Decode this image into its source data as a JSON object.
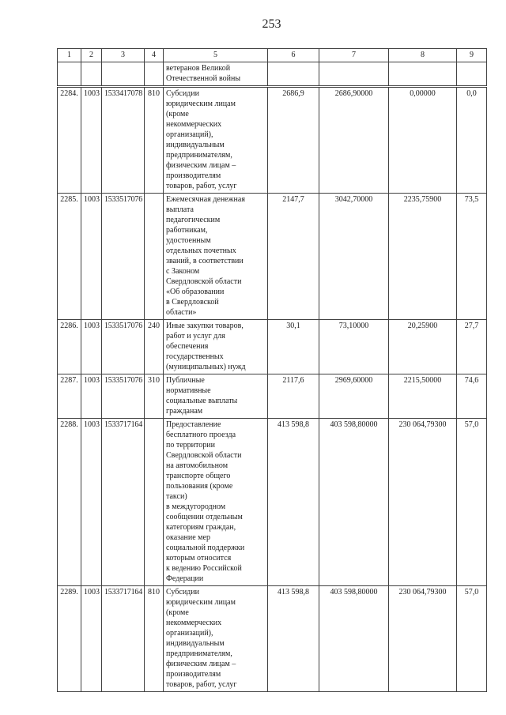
{
  "page": {
    "number": "253"
  },
  "table": {
    "column_numbers": [
      "1",
      "2",
      "3",
      "4",
      "5",
      "6",
      "7",
      "8",
      "9"
    ],
    "carryover_row": {
      "name": "ветеранов Великой\nОтечественной войны"
    },
    "rows": [
      {
        "num": "2284.",
        "section": "1003",
        "target": "1533417078",
        "kind": "810",
        "name": "Субсидии\nюридическим лицам\n(кроме\nнекоммерческих\nорганизаций),\nиндивидуальным\nпредпринимателям,\nфизическим лицам –\nпроизводителям\nтоваров, работ, услуг",
        "v6": "2686,9",
        "v7": "2686,90000",
        "v8": "0,00000",
        "v9": "0,0"
      },
      {
        "num": "2285.",
        "section": "1003",
        "target": "1533517076",
        "kind": "",
        "name": "Ежемесячная денежная\nвыплата\nпедагогическим\nработникам,\nудостоенным\nотдельных почетных\nзваний, в соответствии\nс Законом\nСвердловской области\n«Об образовании\nв Свердловской\nобласти»",
        "v6": "2147,7",
        "v7": "3042,70000",
        "v8": "2235,75900",
        "v9": "73,5"
      },
      {
        "num": "2286.",
        "section": "1003",
        "target": "1533517076",
        "kind": "240",
        "name": "Иные закупки товаров,\nработ и услуг для\nобеспечения\nгосударственных\n(муниципальных) нужд",
        "v6": "30,1",
        "v7": "73,10000",
        "v8": "20,25900",
        "v9": "27,7"
      },
      {
        "num": "2287.",
        "section": "1003",
        "target": "1533517076",
        "kind": "310",
        "name": "Публичные\nнормативные\nсоциальные выплаты\nгражданам",
        "v6": "2117,6",
        "v7": "2969,60000",
        "v8": "2215,50000",
        "v9": "74,6"
      },
      {
        "num": "2288.",
        "section": "1003",
        "target": "1533717164",
        "kind": "",
        "name": "Предоставление\nбесплатного проезда\nпо территории\nСвердловской области\nна автомобильном\nтранспорте общего\nпользования (кроме\nтакси)\nв междугородном\nсообщении отдельным\nкатегориям граждан,\nоказание мер\nсоциальной поддержки\nкоторым относится\nк ведению Российской\nФедерации",
        "v6": "413 598,8",
        "v7": "403 598,80000",
        "v8": "230 064,79300",
        "v9": "57,0"
      },
      {
        "num": "2289.",
        "section": "1003",
        "target": "1533717164",
        "kind": "810",
        "name": "Субсидии\nюридическим лицам\n(кроме\nнекоммерческих\nорганизаций),\nиндивидуальным\nпредпринимателям,\nфизическим лицам –\nпроизводителям\nтоваров, работ, услуг",
        "v6": "413 598,8",
        "v7": "403 598,80000",
        "v8": "230 064,79300",
        "v9": "57,0"
      }
    ]
  }
}
